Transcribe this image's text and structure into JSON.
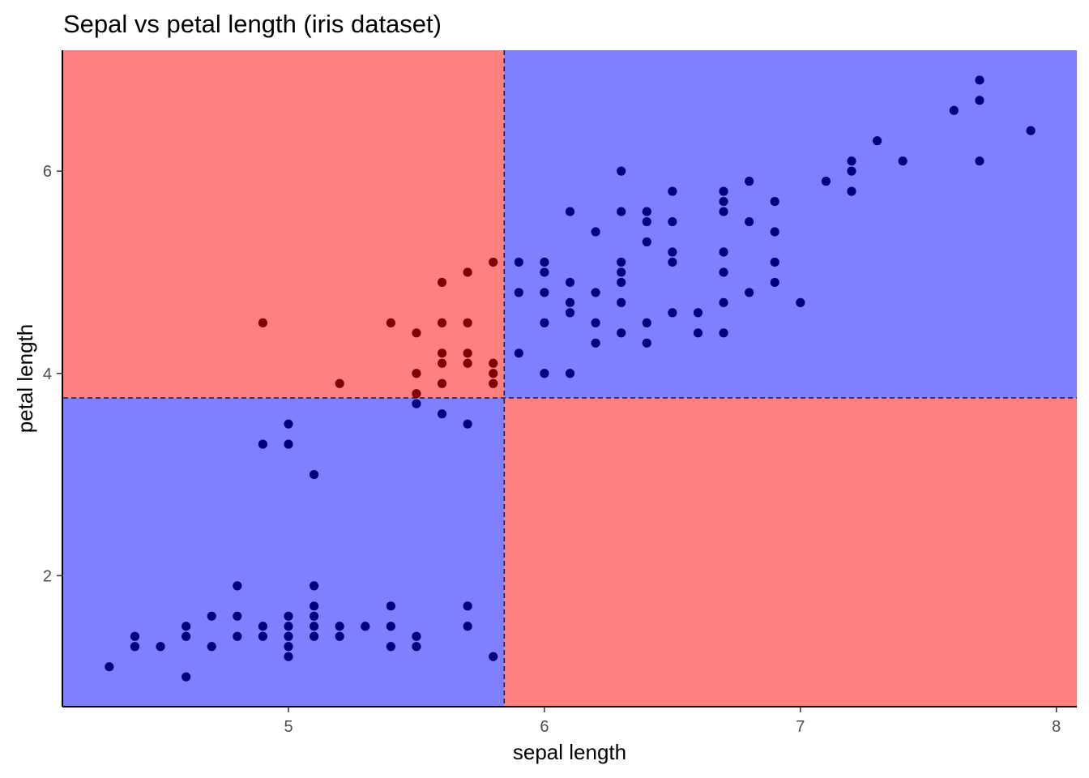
{
  "chart_data": {
    "type": "scatter",
    "title": "Sepal vs petal length (iris dataset)",
    "xlabel": "sepal length",
    "ylabel": "petal length",
    "xlim": [
      4.12,
      8.08
    ],
    "ylim": [
      0.705,
      7.195
    ],
    "x_ticks": [
      5,
      6,
      7,
      8
    ],
    "y_ticks": [
      2,
      4,
      6
    ],
    "grid": false,
    "split_x": 5.843,
    "split_y": 3.758,
    "region_colors": {
      "red": "#ff8080",
      "blue": "#8080ff"
    },
    "regions": [
      {
        "quadrant": "top-left",
        "color": "red"
      },
      {
        "quadrant": "top-right",
        "color": "blue"
      },
      {
        "quadrant": "bottom-left",
        "color": "blue"
      },
      {
        "quadrant": "bottom-right",
        "color": "red"
      }
    ],
    "point_colors": {
      "correct": "#00007f",
      "misclassified": "#7f0000"
    },
    "series": [
      {
        "class": "correct",
        "points": [
          [
            4.3,
            1.1
          ],
          [
            4.4,
            1.4
          ],
          [
            4.4,
            1.3
          ],
          [
            4.5,
            1.3
          ],
          [
            4.6,
            1.5
          ],
          [
            4.6,
            1.4
          ],
          [
            4.6,
            1.0
          ],
          [
            4.7,
            1.6
          ],
          [
            4.7,
            1.3
          ],
          [
            4.8,
            1.9
          ],
          [
            4.8,
            1.6
          ],
          [
            4.8,
            1.4
          ],
          [
            4.9,
            1.5
          ],
          [
            4.9,
            1.4
          ],
          [
            4.9,
            3.3
          ],
          [
            5.0,
            1.6
          ],
          [
            5.0,
            1.5
          ],
          [
            5.0,
            1.4
          ],
          [
            5.0,
            1.3
          ],
          [
            5.0,
            1.2
          ],
          [
            5.0,
            3.5
          ],
          [
            5.0,
            3.3
          ],
          [
            5.1,
            1.9
          ],
          [
            5.1,
            1.7
          ],
          [
            5.1,
            1.6
          ],
          [
            5.1,
            1.5
          ],
          [
            5.1,
            1.4
          ],
          [
            5.1,
            3.0
          ],
          [
            5.2,
            1.5
          ],
          [
            5.2,
            1.4
          ],
          [
            5.3,
            1.5
          ],
          [
            5.4,
            1.7
          ],
          [
            5.4,
            1.5
          ],
          [
            5.4,
            1.3
          ],
          [
            5.5,
            1.4
          ],
          [
            5.5,
            1.3
          ],
          [
            5.5,
            3.7
          ],
          [
            5.6,
            3.6
          ],
          [
            5.7,
            1.7
          ],
          [
            5.7,
            1.5
          ],
          [
            5.7,
            3.5
          ],
          [
            5.8,
            1.2
          ],
          [
            5.9,
            5.1
          ],
          [
            5.9,
            4.8
          ],
          [
            5.9,
            4.2
          ],
          [
            6.0,
            5.1
          ],
          [
            6.0,
            5.0
          ],
          [
            6.0,
            4.8
          ],
          [
            6.0,
            4.5
          ],
          [
            6.0,
            4.0
          ],
          [
            6.1,
            5.6
          ],
          [
            6.1,
            4.9
          ],
          [
            6.1,
            4.7
          ],
          [
            6.1,
            4.6
          ],
          [
            6.1,
            4.0
          ],
          [
            6.2,
            5.4
          ],
          [
            6.2,
            4.8
          ],
          [
            6.2,
            4.5
          ],
          [
            6.2,
            4.3
          ],
          [
            6.3,
            6.0
          ],
          [
            6.3,
            5.6
          ],
          [
            6.3,
            5.1
          ],
          [
            6.3,
            5.0
          ],
          [
            6.3,
            4.9
          ],
          [
            6.3,
            4.7
          ],
          [
            6.3,
            4.4
          ],
          [
            6.4,
            5.6
          ],
          [
            6.4,
            5.5
          ],
          [
            6.4,
            5.3
          ],
          [
            6.4,
            4.5
          ],
          [
            6.4,
            4.3
          ],
          [
            6.5,
            5.8
          ],
          [
            6.5,
            5.5
          ],
          [
            6.5,
            5.2
          ],
          [
            6.5,
            5.1
          ],
          [
            6.5,
            4.6
          ],
          [
            6.6,
            4.6
          ],
          [
            6.6,
            4.4
          ],
          [
            6.7,
            5.8
          ],
          [
            6.7,
            5.7
          ],
          [
            6.7,
            5.6
          ],
          [
            6.7,
            5.2
          ],
          [
            6.7,
            5.0
          ],
          [
            6.7,
            4.7
          ],
          [
            6.7,
            4.4
          ],
          [
            6.8,
            5.9
          ],
          [
            6.8,
            5.5
          ],
          [
            6.8,
            4.8
          ],
          [
            6.9,
            5.7
          ],
          [
            6.9,
            5.4
          ],
          [
            6.9,
            5.1
          ],
          [
            6.9,
            4.9
          ],
          [
            7.0,
            4.7
          ],
          [
            7.1,
            5.9
          ],
          [
            7.2,
            6.1
          ],
          [
            7.2,
            6.0
          ],
          [
            7.2,
            5.8
          ],
          [
            7.3,
            6.3
          ],
          [
            7.4,
            6.1
          ],
          [
            7.6,
            6.6
          ],
          [
            7.7,
            6.9
          ],
          [
            7.7,
            6.7
          ],
          [
            7.7,
            6.1
          ],
          [
            7.9,
            6.4
          ]
        ]
      },
      {
        "class": "misclassified",
        "points": [
          [
            4.9,
            4.5
          ],
          [
            5.2,
            3.9
          ],
          [
            5.4,
            4.5
          ],
          [
            5.5,
            4.4
          ],
          [
            5.5,
            4.0
          ],
          [
            5.5,
            3.8
          ],
          [
            5.6,
            4.9
          ],
          [
            5.6,
            4.5
          ],
          [
            5.6,
            4.2
          ],
          [
            5.6,
            4.1
          ],
          [
            5.6,
            3.9
          ],
          [
            5.7,
            5.0
          ],
          [
            5.7,
            4.5
          ],
          [
            5.7,
            4.2
          ],
          [
            5.7,
            4.1
          ],
          [
            5.8,
            5.1
          ],
          [
            5.8,
            4.1
          ],
          [
            5.8,
            4.0
          ],
          [
            5.8,
            3.9
          ]
        ]
      }
    ]
  }
}
